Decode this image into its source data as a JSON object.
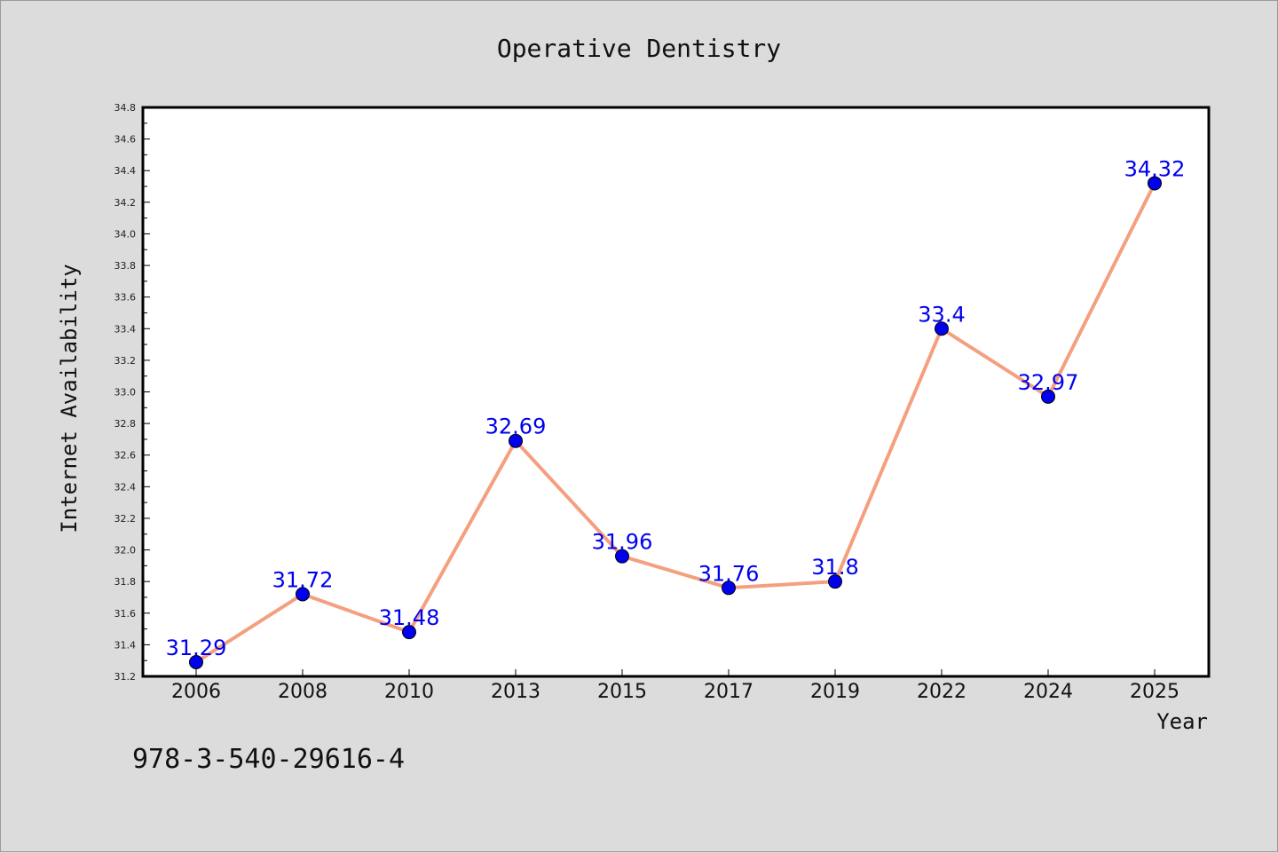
{
  "chart_data": {
    "type": "line",
    "title": "Operative Dentistry",
    "xlabel": "Year",
    "ylabel": "Internet Availability",
    "categories": [
      "2006",
      "2008",
      "2010",
      "2013",
      "2015",
      "2017",
      "2019",
      "2022",
      "2024",
      "2025"
    ],
    "values": [
      31.29,
      31.72,
      31.48,
      32.69,
      31.96,
      31.76,
      31.8,
      33.4,
      32.97,
      34.32
    ],
    "data_labels": [
      "31.29",
      "31.72",
      "31.48",
      "32.69",
      "31.96",
      "31.76",
      "31.8",
      "33.4",
      "32.97",
      "34.32"
    ],
    "ylim": [
      31.2,
      34.8
    ],
    "yticks": [
      "31.2",
      "31.4",
      "31.6",
      "31.8",
      "32.0",
      "32.2",
      "32.4",
      "32.6",
      "32.8",
      "33.0",
      "33.2",
      "33.4",
      "33.6",
      "33.8",
      "34.0",
      "34.2",
      "34.4",
      "34.6",
      "34.8"
    ],
    "grid": false,
    "line_color": "#f4a07f",
    "marker_color": "#0000ee",
    "label_color": "#0000ee"
  },
  "footnote": "978-3-540-29616-4"
}
